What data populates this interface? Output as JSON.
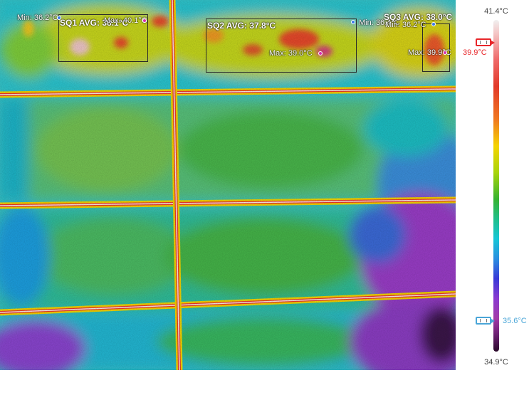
{
  "thermal_image": {
    "regions": [
      {
        "label": "SQ1 AVG: 38.1°C",
        "min": "Min: 36.2°C",
        "max": "Max: 40.1°C"
      },
      {
        "label": "SQ2 AVG: 37.8°C",
        "min": "Min: 36.4°C",
        "max": "Max: 39.0°C"
      },
      {
        "label": "SQ3 AVG: 38.0°C",
        "min": "Min: 36.2°C",
        "max": "Max: 39.9°C"
      }
    ]
  },
  "palette": {
    "scale_max": "41.4°C",
    "scale_min": "34.9°C",
    "high_threshold": "39.9°C",
    "low_threshold": "35.6°C",
    "high_color": "#e8262a",
    "low_color": "#4aa6d8"
  }
}
